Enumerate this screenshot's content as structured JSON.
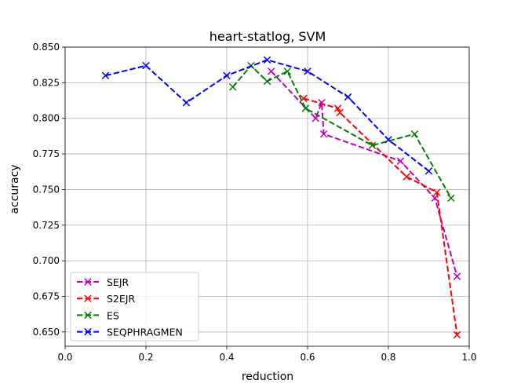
{
  "chart_data": {
    "type": "line",
    "title": "heart-statlog, SVM",
    "xlabel": "reduction",
    "ylabel": "accuracy",
    "xlim": [
      0.0,
      1.0
    ],
    "ylim": [
      0.64,
      0.85
    ],
    "xticks": [
      0.0,
      0.2,
      0.4,
      0.6,
      0.8,
      1.0
    ],
    "xtick_labels": [
      "0.0",
      "0.2",
      "0.4",
      "0.6",
      "0.8",
      "1.0"
    ],
    "yticks": [
      0.65,
      0.675,
      0.7,
      0.725,
      0.75,
      0.775,
      0.8,
      0.825,
      0.85
    ],
    "ytick_labels": [
      "0.650",
      "0.675",
      "0.700",
      "0.725",
      "0.750",
      "0.775",
      "0.800",
      "0.825",
      "0.850"
    ],
    "grid": true,
    "legend_position": "lower-left",
    "series": [
      {
        "name": "SEJR",
        "color": "#bf00bf",
        "x": [
          0.51,
          0.62,
          0.635,
          0.64,
          0.83,
          0.915,
          0.97
        ],
        "y": [
          0.833,
          0.8,
          0.811,
          0.789,
          0.77,
          0.744,
          0.689
        ]
      },
      {
        "name": "S2EJR",
        "color": "#ff0000",
        "x": [
          0.59,
          0.675,
          0.68,
          0.845,
          0.92,
          0.97
        ],
        "y": [
          0.814,
          0.807,
          0.804,
          0.759,
          0.748,
          0.648
        ]
      },
      {
        "name": "ES",
        "color": "#008000",
        "x": [
          0.415,
          0.46,
          0.5,
          0.55,
          0.595,
          0.76,
          0.865,
          0.955
        ],
        "y": [
          0.822,
          0.837,
          0.826,
          0.833,
          0.807,
          0.781,
          0.789,
          0.744
        ]
      },
      {
        "name": "SEQPHRAGMEN",
        "color": "#0000ff",
        "x": [
          0.1,
          0.2,
          0.3,
          0.4,
          0.5,
          0.6,
          0.7,
          0.8,
          0.9
        ],
        "y": [
          0.83,
          0.837,
          0.811,
          0.83,
          0.841,
          0.833,
          0.815,
          0.785,
          0.763
        ]
      }
    ]
  }
}
